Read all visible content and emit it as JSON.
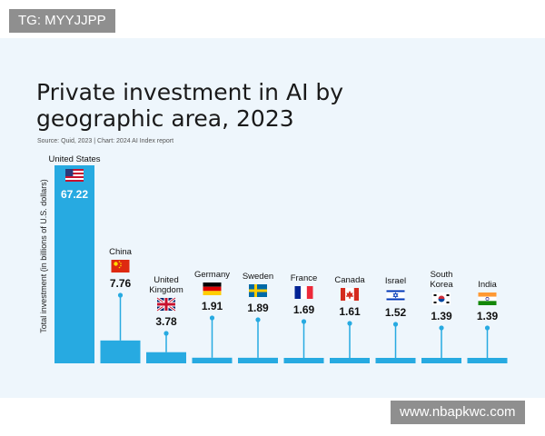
{
  "watermarks": {
    "top": "TG: MYYJJPP",
    "bottom": "www.nbapkwc.com"
  },
  "colors": {
    "accent": "#27aae1",
    "panel": "#eef6fc",
    "text": "#111111"
  },
  "chart_data": {
    "type": "bar",
    "title_lines": [
      "Private investment in AI by",
      "geographic area, 2023"
    ],
    "source": "Source: Quid, 2023 | Chart: 2024 AI Index report",
    "xlabel": "",
    "ylabel": "Total investment (in billions of U.S. dollars)",
    "ylim": [
      0,
      67.22
    ],
    "grid": false,
    "legend": "none",
    "categories": [
      {
        "name": "United States",
        "lines": [
          "United States"
        ],
        "flag": "flag-us-icon"
      },
      {
        "name": "China",
        "lines": [
          "China"
        ],
        "flag": "flag-cn-icon"
      },
      {
        "name": "United Kingdom",
        "lines": [
          "United",
          "Kingdom"
        ],
        "flag": "flag-uk-icon"
      },
      {
        "name": "Germany",
        "lines": [
          "Germany"
        ],
        "flag": "flag-de-icon"
      },
      {
        "name": "Sweden",
        "lines": [
          "Sweden"
        ],
        "flag": "flag-se-icon"
      },
      {
        "name": "France",
        "lines": [
          "France"
        ],
        "flag": "flag-fr-icon"
      },
      {
        "name": "Canada",
        "lines": [
          "Canada"
        ],
        "flag": "flag-ca-icon"
      },
      {
        "name": "Israel",
        "lines": [
          "Israel"
        ],
        "flag": "flag-il-icon"
      },
      {
        "name": "South Korea",
        "lines": [
          "South",
          "Korea"
        ],
        "flag": "flag-kr-icon"
      },
      {
        "name": "India",
        "lines": [
          "India"
        ],
        "flag": "flag-in-icon"
      }
    ],
    "values": [
      67.22,
      7.76,
      3.78,
      1.91,
      1.89,
      1.69,
      1.61,
      1.52,
      1.39,
      1.39
    ],
    "value_labels": [
      "67.22",
      "7.76",
      "3.78",
      "1.91",
      "1.89",
      "1.69",
      "1.61",
      "1.52",
      "1.39",
      "1.39"
    ]
  }
}
